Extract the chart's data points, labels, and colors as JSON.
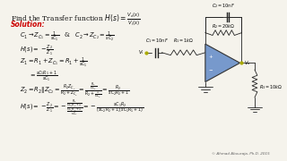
{
  "bg_color": "#f5f3ec",
  "title_text": "Find the Transfer function $H(s) = \\frac{V_o(s)}{V_i(s)}$",
  "solution_color": "#cc0000",
  "watermark": "© Ahmad Abouraja, Ph.D. 2015",
  "math_fontsize": 4.8,
  "title_fontsize": 5.5,
  "circuit_bg": "#e8eaf0",
  "opamp_color": "#7799cc",
  "wire_color": "#222222",
  "text_color": "#111111"
}
